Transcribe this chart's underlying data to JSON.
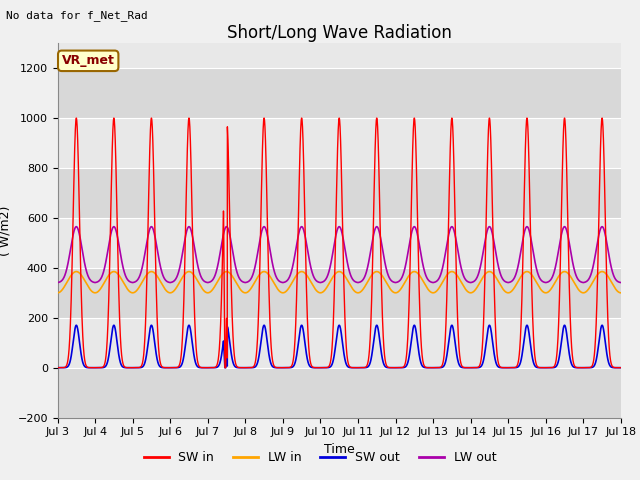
{
  "title": "Short/Long Wave Radiation",
  "xlabel": "Time",
  "ylabel": "( W/m2)",
  "ylim": [
    -200,
    1300
  ],
  "xlim": [
    0,
    15
  ],
  "x_tick_labels": [
    "Jul 3",
    "Jul 4",
    "Jul 5",
    "Jul 6",
    "Jul 7",
    "Jul 8",
    "Jul 9",
    "Jul 10",
    "Jul 11",
    "Jul 12",
    "Jul 13",
    "Jul 14",
    "Jul 15",
    "Jul 16",
    "Jul 17",
    "Jul 18"
  ],
  "y_ticks": [
    -200,
    0,
    200,
    400,
    600,
    800,
    1000,
    1200
  ],
  "annotation_text": "No data for f_Net_Rad",
  "vr_met_label": "VR_met",
  "legend_entries": [
    "SW in",
    "LW in",
    "SW out",
    "LW out"
  ],
  "legend_colors": [
    "#ff0000",
    "#ffa500",
    "#0000dd",
    "#aa00aa"
  ],
  "sw_in_peak": 1000,
  "lw_in_base": 300,
  "lw_in_peak": 385,
  "sw_out_peak": 170,
  "lw_out_base": 340,
  "lw_out_peak": 590,
  "n_days": 15,
  "samples_per_day": 288,
  "background_color": "#f0f0f0",
  "plot_bg_color": "#e8e8e8",
  "band_color1": "#d8d8d8",
  "band_color2": "#e8e8e8",
  "grid_color": "#ffffff",
  "title_fontsize": 12,
  "label_fontsize": 9,
  "tick_fontsize": 8
}
